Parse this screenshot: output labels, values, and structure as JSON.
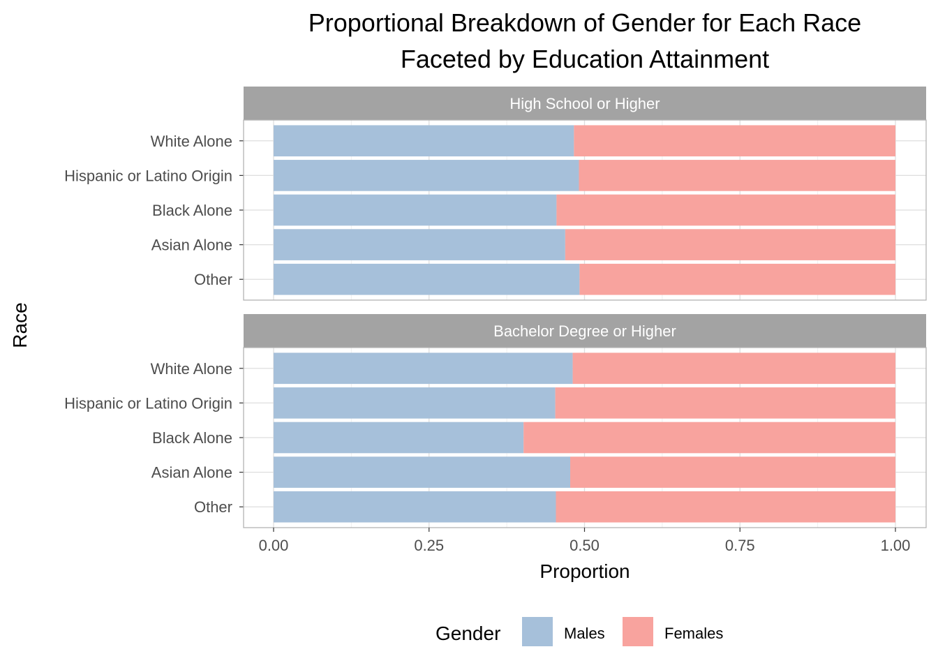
{
  "chart_data": {
    "type": "bar",
    "stacked": "proportional",
    "orientation": "horizontal",
    "title_lines": [
      "Proportional Breakdown of Gender for Each Race",
      "Faceted by Education Attainment"
    ],
    "xlabel": "Proportion",
    "ylabel": "Race",
    "xlim": [
      0,
      1
    ],
    "x_ticks": [
      "0.00",
      "0.25",
      "0.50",
      "0.75",
      "1.00"
    ],
    "x_tick_values": [
      0,
      0.25,
      0.5,
      0.75,
      1.0
    ],
    "grid": true,
    "legend": {
      "title": "Gender",
      "position": "bottom",
      "entries": [
        {
          "label": "Males",
          "color": "#a6c0da"
        },
        {
          "label": "Females",
          "color": "#f8a39e"
        }
      ]
    },
    "categories": [
      "White Alone",
      "Hispanic or Latino Origin",
      "Black Alone",
      "Asian Alone",
      "Other"
    ],
    "facets": [
      {
        "label": "High School or Higher",
        "series": [
          {
            "name": "Males",
            "values": [
              0.483,
              0.491,
              0.455,
              0.469,
              0.492
            ]
          },
          {
            "name": "Females",
            "values": [
              0.517,
              0.509,
              0.545,
              0.531,
              0.508
            ]
          }
        ]
      },
      {
        "label": "Bachelor Degree or Higher",
        "series": [
          {
            "name": "Males",
            "values": [
              0.481,
              0.453,
              0.402,
              0.477,
              0.454
            ]
          },
          {
            "name": "Females",
            "values": [
              0.519,
              0.547,
              0.598,
              0.523,
              0.546
            ]
          }
        ]
      }
    ]
  }
}
